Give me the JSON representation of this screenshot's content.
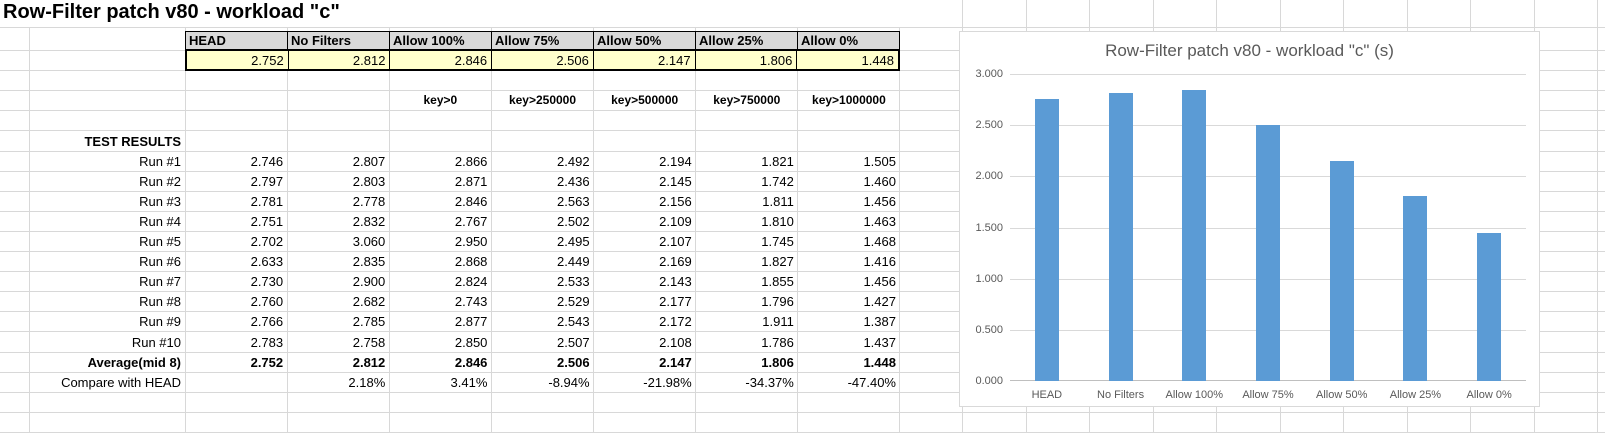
{
  "sheet_title": "Row-Filter patch v80 - workload \"c\"",
  "table": {
    "columns": [
      "HEAD",
      "No Filters",
      "Allow 100%",
      "Allow 75%",
      "Allow 50%",
      "Allow 25%",
      "Allow 0%"
    ],
    "summary_values": [
      "2.752",
      "2.812",
      "2.846",
      "2.506",
      "2.147",
      "1.806",
      "1.448"
    ],
    "key_labels": [
      "",
      "",
      "key>0",
      "key>250000",
      "key>500000",
      "key>750000",
      "key>1000000"
    ],
    "section_label": "TEST RESULTS",
    "rows": [
      {
        "label": "Run #1",
        "bold": false,
        "values": [
          "2.746",
          "2.807",
          "2.866",
          "2.492",
          "2.194",
          "1.821",
          "1.505"
        ]
      },
      {
        "label": "Run #2",
        "bold": false,
        "values": [
          "2.797",
          "2.803",
          "2.871",
          "2.436",
          "2.145",
          "1.742",
          "1.460"
        ]
      },
      {
        "label": "Run #3",
        "bold": false,
        "values": [
          "2.781",
          "2.778",
          "2.846",
          "2.563",
          "2.156",
          "1.811",
          "1.456"
        ]
      },
      {
        "label": "Run #4",
        "bold": false,
        "values": [
          "2.751",
          "2.832",
          "2.767",
          "2.502",
          "2.109",
          "1.810",
          "1.463"
        ]
      },
      {
        "label": "Run #5",
        "bold": false,
        "values": [
          "2.702",
          "3.060",
          "2.950",
          "2.495",
          "2.107",
          "1.745",
          "1.468"
        ]
      },
      {
        "label": "Run #6",
        "bold": false,
        "values": [
          "2.633",
          "2.835",
          "2.868",
          "2.449",
          "2.169",
          "1.827",
          "1.416"
        ]
      },
      {
        "label": "Run #7",
        "bold": false,
        "values": [
          "2.730",
          "2.900",
          "2.824",
          "2.533",
          "2.143",
          "1.855",
          "1.456"
        ]
      },
      {
        "label": "Run #8",
        "bold": false,
        "values": [
          "2.760",
          "2.682",
          "2.743",
          "2.529",
          "2.177",
          "1.796",
          "1.427"
        ]
      },
      {
        "label": "Run #9",
        "bold": false,
        "values": [
          "2.766",
          "2.785",
          "2.877",
          "2.543",
          "2.172",
          "1.911",
          "1.387"
        ]
      },
      {
        "label": "Run #10",
        "bold": false,
        "values": [
          "2.783",
          "2.758",
          "2.850",
          "2.507",
          "2.108",
          "1.786",
          "1.437"
        ]
      },
      {
        "label": "Average(mid 8)",
        "bold": true,
        "values": [
          "2.752",
          "2.812",
          "2.846",
          "2.506",
          "2.147",
          "1.806",
          "1.448"
        ]
      },
      {
        "label": "Compare with HEAD",
        "bold": false,
        "values": [
          "",
          "2.18%",
          "3.41%",
          "-8.94%",
          "-21.98%",
          "-34.37%",
          "-47.40%"
        ]
      }
    ]
  },
  "chart_data": {
    "type": "bar",
    "title": "Row-Filter patch v80 - workload \"c\" (s)",
    "categories": [
      "HEAD",
      "No Filters",
      "Allow 100%",
      "Allow 75%",
      "Allow 50%",
      "Allow 25%",
      "Allow 0%"
    ],
    "values": [
      2.752,
      2.812,
      2.846,
      2.506,
      2.147,
      1.806,
      1.448
    ],
    "xlabel": "",
    "ylabel": "",
    "ylim": [
      0,
      3
    ],
    "ytick_step": 0.5,
    "ytick_labels": [
      "3.000",
      "2.500",
      "2.000",
      "1.500",
      "1.000",
      "0.500",
      "0.000"
    ],
    "grid": true,
    "legend_position": "none",
    "bar_color": "#5b9bd5"
  },
  "colors": {
    "header_fill": "#d9d9d9",
    "summary_fill": "#ffffcc",
    "bar_blue": "#5b9bd5",
    "chart_text": "#595959",
    "sheet_gridline": "#d8d8d8",
    "chart_gridline": "#d9d9d9"
  }
}
